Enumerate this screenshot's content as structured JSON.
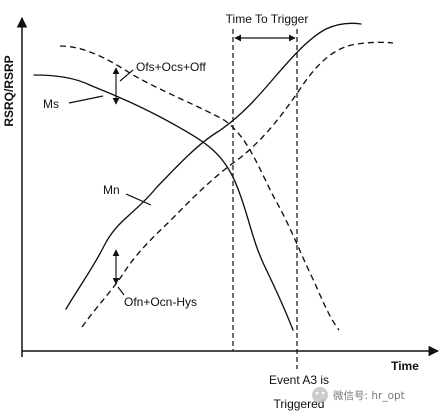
{
  "diagram": {
    "y_axis_label": "RSRQ/RSRP",
    "x_axis_label": "Time",
    "curve_labels": {
      "serving": "Ms",
      "neighbor": "Mn"
    },
    "annotations": {
      "serving_offset": "Ofs+Ocs+Off",
      "neighbor_offset": "Ofn+Ocn-Hys",
      "time_to_trigger": "Time To Trigger",
      "event_line1": "Event A3 is",
      "event_line2": "Triggered"
    },
    "watermark": "微信号: hr_opt"
  }
}
